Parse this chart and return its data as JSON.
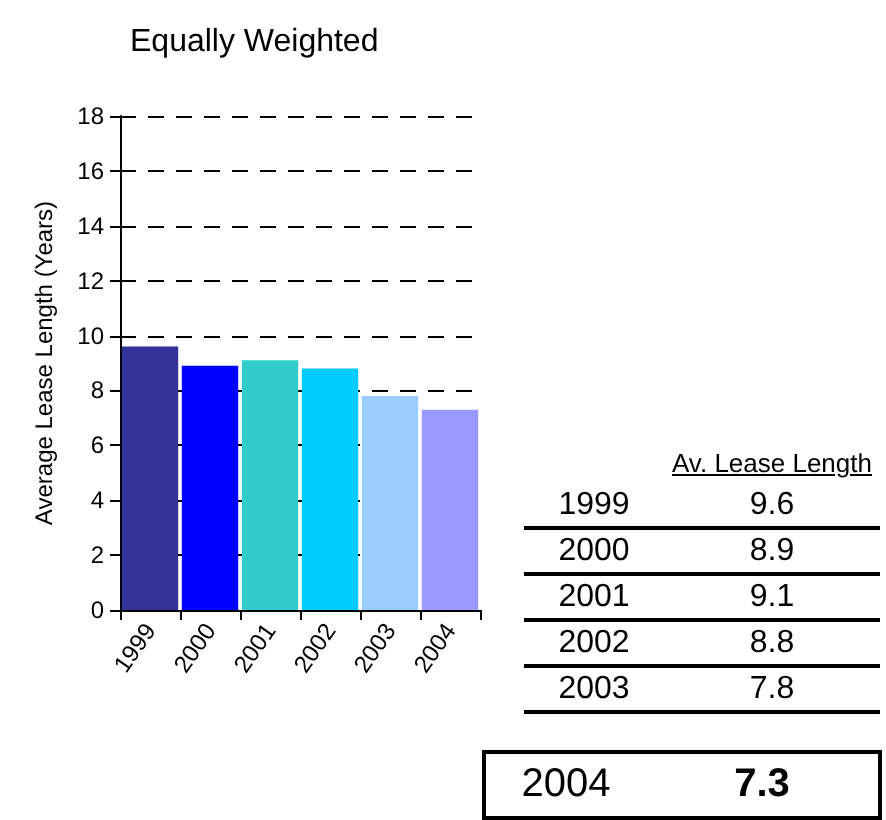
{
  "chart_data": {
    "type": "bar",
    "title": "Equally Weighted",
    "ylabel": "Average Lease Length (Years)",
    "categories": [
      "1999",
      "2000",
      "2001",
      "2002",
      "2003",
      "2004"
    ],
    "values": [
      9.6,
      8.9,
      9.1,
      8.8,
      7.8,
      7.3
    ],
    "colors": [
      "#333399",
      "#0000ff",
      "#33cccc",
      "#00ccff",
      "#99ccff",
      "#9999ff"
    ],
    "ylim": [
      0,
      18
    ],
    "yticks": [
      0,
      2,
      4,
      6,
      8,
      10,
      12,
      14,
      16,
      18
    ],
    "grid": "y",
    "annotations": [
      "Av. Lease Length",
      "9.6",
      "8.9",
      "9.1",
      "8.8",
      "7.8",
      "7.3"
    ]
  }
}
